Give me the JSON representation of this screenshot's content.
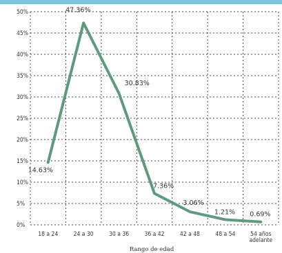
{
  "chart_data": {
    "type": "line",
    "title": "",
    "xlabel": "Rango de edad",
    "ylabel": "",
    "categories": [
      "18 a 24",
      "24 a 30",
      "30 a 36",
      "36 a 42",
      "42 a 48",
      "48 a 54",
      "54 años adelante"
    ],
    "category_lines": [
      [
        "18 a 24"
      ],
      [
        "24 a 30"
      ],
      [
        "30 a 36"
      ],
      [
        "36 a 42"
      ],
      [
        "42 a 48"
      ],
      [
        "48 a 54"
      ],
      [
        "54 años",
        "adelante"
      ]
    ],
    "values": [
      14.63,
      47.36,
      30.83,
      7.36,
      3.06,
      1.21,
      0.69
    ],
    "data_labels": [
      "14.63%",
      "47.36%",
      "30.83%",
      "7.36%",
      "3.06%",
      "1.21%",
      "0.69%"
    ],
    "y_ticks": [
      "0%",
      "5%",
      "10%",
      "15%",
      "20%",
      "25%",
      "30%",
      "35%",
      "40%",
      "45%",
      "50%"
    ],
    "ylim": [
      0,
      50
    ],
    "grid": true,
    "colors": {
      "line": "#5e9a7c",
      "grid": "#444444",
      "axis_text": "#333333",
      "top_band": "#7ec3e0"
    }
  }
}
